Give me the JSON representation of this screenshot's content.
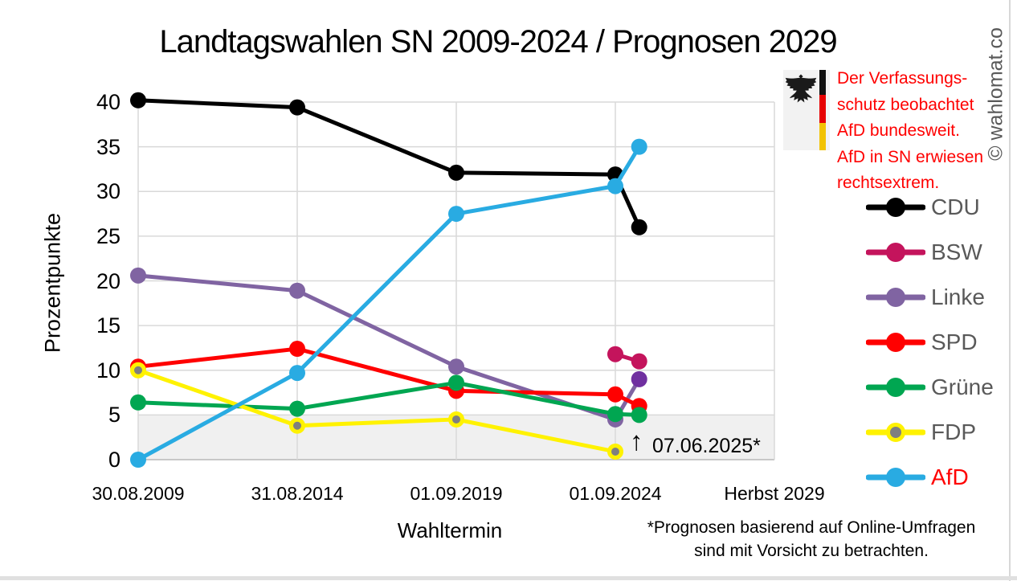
{
  "title": "Landtagswahlen SN 2009-2024 / Prognosen 2029",
  "copyright": "© wahlomat.co",
  "warning": {
    "text": "Der Verfassungs-\nschutz beobachtet\nAfD bundesweit.\nAfD in SN erwiesen\nrechtsextrem.",
    "color": "#ff0000"
  },
  "annotation": {
    "arrow": "↑",
    "label": "07.06.2025*"
  },
  "footnote": "*Prognosen basierend auf Online-Umfragen\nsind mit Vorsicht zu betrachten.",
  "legend": {
    "position": "right",
    "items": [
      {
        "id": "cdu",
        "label": "CDU",
        "color": "#000000",
        "label_color": "#595959"
      },
      {
        "id": "bsw",
        "label": "BSW",
        "color": "#C4145C",
        "label_color": "#595959"
      },
      {
        "id": "linke",
        "label": "Linke",
        "color": "#8064A2",
        "label_color": "#595959"
      },
      {
        "id": "spd",
        "label": "SPD",
        "color": "#FF0000",
        "label_color": "#595959"
      },
      {
        "id": "gruene",
        "label": "Grüne",
        "color": "#00A651",
        "label_color": "#595959"
      },
      {
        "id": "fdp",
        "label": "FDP",
        "color": "#FFF200",
        "marker_fill": "#7F7F7F",
        "marker_stroke": "#FFF200",
        "label_color": "#595959"
      },
      {
        "id": "afd",
        "label": "AfD",
        "color": "#29ABE2",
        "label_color": "#FF0000"
      }
    ]
  },
  "chart_data": {
    "type": "line",
    "title": "Landtagswahlen SN 2009-2024 / Prognosen 2029",
    "xlabel": "Wahltermin",
    "ylabel": "Prozentpunkte",
    "xlim": [
      0,
      4
    ],
    "ylim": [
      0,
      40
    ],
    "grid": true,
    "x_ticks": [
      0,
      1,
      2,
      3,
      4
    ],
    "x_ticklabels": [
      "30.08.2009",
      "31.08.2014",
      "01.09.2019",
      "01.09.2024",
      "Herbst 2029"
    ],
    "y_ticks": [
      0,
      5,
      10,
      15,
      20,
      25,
      30,
      35,
      40
    ],
    "threshold_band": {
      "from": 0,
      "to": 5,
      "color": "#f0f0f0"
    },
    "prognosis_x": 3.15,
    "prognosis_date": "07.06.2025",
    "series": [
      {
        "name": "CDU",
        "color": "#000000",
        "x": [
          0,
          1,
          2,
          3,
          3.15
        ],
        "values": [
          40.2,
          39.4,
          32.1,
          31.9,
          26
        ]
      },
      {
        "name": "BSW",
        "color": "#C4145C",
        "x": [
          3,
          3.15
        ],
        "values": [
          11.8,
          11
        ]
      },
      {
        "name": "Linke",
        "color": "#8064A2",
        "last_marker_fill": "#7030A0",
        "x": [
          0,
          1,
          2,
          3,
          3.15
        ],
        "values": [
          20.6,
          18.9,
          10.4,
          4.5,
          9
        ]
      },
      {
        "name": "SPD",
        "color": "#FF0000",
        "x": [
          0,
          1,
          2,
          3,
          3.15
        ],
        "values": [
          10.4,
          12.4,
          7.7,
          7.3,
          6
        ]
      },
      {
        "name": "Grüne",
        "color": "#00A651",
        "x": [
          0,
          1,
          2,
          3,
          3.15
        ],
        "values": [
          6.4,
          5.7,
          8.6,
          5.1,
          5
        ]
      },
      {
        "name": "FDP",
        "color": "#FFF200",
        "marker_fill": "#7F7F7F",
        "marker_stroke": "#FFF200",
        "x": [
          0,
          1,
          2,
          3
        ],
        "values": [
          10.0,
          3.8,
          4.5,
          0.9
        ]
      },
      {
        "name": "AfD",
        "color": "#29ABE2",
        "x": [
          0,
          1,
          2,
          3,
          3.15
        ],
        "values": [
          0,
          9.7,
          27.5,
          30.6,
          35
        ]
      }
    ]
  }
}
